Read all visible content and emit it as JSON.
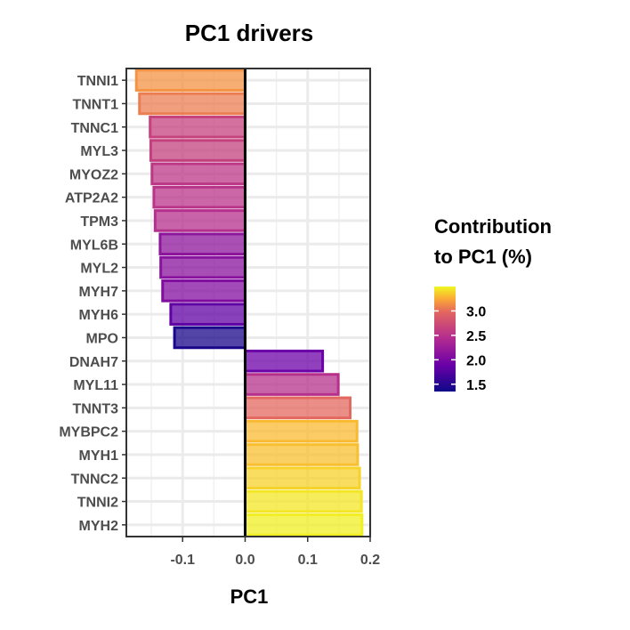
{
  "chart_data": {
    "type": "bar",
    "orientation": "horizontal",
    "title": "PC1 drivers",
    "xlabel": "PC1",
    "ylabel": "",
    "xlim": [
      -0.19,
      0.2
    ],
    "x_ticks": [
      "-0.1",
      "0.0",
      "0.1",
      "0.2"
    ],
    "x_tick_values": [
      -0.1,
      0.0,
      0.1,
      0.2
    ],
    "grid": true,
    "categories": [
      "TNNI1",
      "TNNT1",
      "TNNC1",
      "MYL3",
      "MYOZ2",
      "ATP2A2",
      "TPM3",
      "MYL6B",
      "MYL2",
      "MYH7",
      "MYH6",
      "MPO",
      "DNAH7",
      "MYL11",
      "TNNT3",
      "MYBPC2",
      "MYH1",
      "TNNC2",
      "TNNI2",
      "MYH2"
    ],
    "values": [
      -0.174,
      -0.169,
      -0.152,
      -0.151,
      -0.149,
      -0.146,
      -0.144,
      -0.136,
      -0.135,
      -0.132,
      -0.119,
      -0.113,
      0.124,
      0.149,
      0.168,
      0.179,
      0.18,
      0.183,
      0.186,
      0.187
    ],
    "color_values": [
      3.16,
      3.07,
      2.65,
      2.63,
      2.55,
      2.51,
      2.47,
      2.15,
      2.12,
      2.06,
      1.83,
      1.42,
      1.9,
      2.48,
      2.98,
      3.3,
      3.32,
      3.38,
      3.44,
      3.47
    ],
    "legend": {
      "title_lines": [
        "Contribution",
        "to PC1 (%)"
      ],
      "labels": [
        "3.0",
        "2.5",
        "2.0",
        "1.5"
      ],
      "label_values": [
        3.0,
        2.5,
        2.0,
        1.5
      ],
      "range": [
        1.35,
        3.5
      ],
      "placement": "right"
    }
  }
}
